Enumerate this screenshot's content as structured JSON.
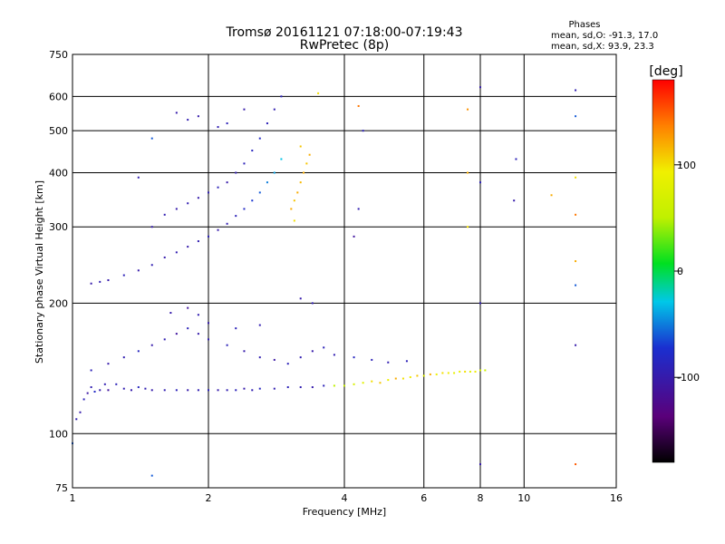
{
  "header": {
    "title": "Tromsø 20161121 07:18:00-07:19:43",
    "subtitle": "RwPretec (8p)",
    "phases_heading": "Phases",
    "phases_line1": "mean, sd,O: -91.3, 17.0",
    "phases_line2": "mean, sd,X:  93.9, 23.3"
  },
  "colorbar": {
    "label": "[deg]",
    "ticks": [
      {
        "value": 100,
        "label": "100"
      },
      {
        "value": 0,
        "label": "0"
      },
      {
        "value": -100,
        "label": "-100"
      }
    ],
    "range": [
      -180,
      180
    ]
  },
  "chart_data": {
    "type": "scatter",
    "title": "Tromsø 20161121 07:18:00-07:19:43",
    "subtitle": "RwPretec (8p)",
    "xlabel": "Frequency [MHz]",
    "ylabel": "Stationary phase Virtual Height [km]",
    "xscale": "log",
    "yscale": "log",
    "xlim": [
      1,
      16
    ],
    "ylim": [
      75,
      750
    ],
    "grid": true,
    "x_ticks": [
      1,
      2,
      4,
      6,
      8,
      10,
      16
    ],
    "x_tick_labels": [
      "1",
      "2",
      "4",
      "6",
      "8",
      "10",
      "16"
    ],
    "y_ticks": [
      75,
      100,
      200,
      300,
      400,
      500,
      600,
      750
    ],
    "y_tick_labels": [
      "75",
      "100",
      "200",
      "300",
      "400",
      "500",
      "600",
      "750"
    ],
    "color_scale": "phase [deg], -180 (black/purple) to 180 (red)",
    "points": [
      [
        1.02,
        108,
        -95
      ],
      [
        1.04,
        112,
        -100
      ],
      [
        1.06,
        120,
        -90
      ],
      [
        1.08,
        124,
        -105
      ],
      [
        1.1,
        128,
        -95
      ],
      [
        1.12,
        125,
        -80
      ],
      [
        1.15,
        126,
        -100
      ],
      [
        1.18,
        130,
        -95
      ],
      [
        1.2,
        126,
        -110
      ],
      [
        1.25,
        130,
        -90
      ],
      [
        1.3,
        127,
        -95
      ],
      [
        1.35,
        126,
        -100
      ],
      [
        1.4,
        128,
        -85
      ],
      [
        1.45,
        127,
        -95
      ],
      [
        1.5,
        126,
        -100
      ],
      [
        1.6,
        126,
        -95
      ],
      [
        1.7,
        126,
        -90
      ],
      [
        1.8,
        126,
        -100
      ],
      [
        1.9,
        126,
        -95
      ],
      [
        2.0,
        126,
        -90
      ],
      [
        2.1,
        126,
        -100
      ],
      [
        2.2,
        126,
        -95
      ],
      [
        2.3,
        126,
        -90
      ],
      [
        2.4,
        127,
        -100
      ],
      [
        2.5,
        126,
        -95
      ],
      [
        2.6,
        127,
        -85
      ],
      [
        2.8,
        127,
        -95
      ],
      [
        3.0,
        128,
        -90
      ],
      [
        3.2,
        128,
        -95
      ],
      [
        3.4,
        128,
        -100
      ],
      [
        3.6,
        129,
        -90
      ],
      [
        3.8,
        129,
        50
      ],
      [
        4.0,
        129,
        60
      ],
      [
        4.2,
        130,
        70
      ],
      [
        4.4,
        131,
        80
      ],
      [
        4.6,
        132,
        100
      ],
      [
        4.8,
        131,
        110
      ],
      [
        5.0,
        133,
        90
      ],
      [
        5.2,
        134,
        120
      ],
      [
        5.4,
        134,
        100
      ],
      [
        5.6,
        135,
        95
      ],
      [
        5.8,
        136,
        110
      ],
      [
        6.0,
        136,
        80
      ],
      [
        6.2,
        137,
        120
      ],
      [
        6.4,
        137,
        90
      ],
      [
        6.6,
        138,
        100
      ],
      [
        6.8,
        138,
        95
      ],
      [
        7.0,
        138,
        85
      ],
      [
        7.2,
        139,
        90
      ],
      [
        7.4,
        139,
        100
      ],
      [
        7.6,
        139,
        80
      ],
      [
        7.8,
        139,
        95
      ],
      [
        8.0,
        140,
        70
      ],
      [
        8.2,
        140,
        60
      ],
      [
        1.1,
        140,
        -90
      ],
      [
        1.2,
        145,
        -100
      ],
      [
        1.3,
        150,
        -95
      ],
      [
        1.4,
        155,
        -85
      ],
      [
        1.5,
        160,
        -100
      ],
      [
        1.6,
        165,
        -95
      ],
      [
        1.7,
        170,
        -110
      ],
      [
        1.8,
        175,
        -90
      ],
      [
        1.9,
        170,
        -100
      ],
      [
        2.0,
        165,
        -95
      ],
      [
        2.2,
        160,
        -90
      ],
      [
        2.4,
        155,
        -100
      ],
      [
        2.6,
        150,
        -95
      ],
      [
        2.8,
        148,
        -105
      ],
      [
        3.0,
        145,
        -90
      ],
      [
        3.2,
        150,
        -95
      ],
      [
        3.4,
        155,
        -100
      ],
      [
        3.6,
        158,
        -90
      ],
      [
        3.8,
        152,
        -95
      ],
      [
        4.2,
        150,
        -85
      ],
      [
        4.6,
        148,
        -90
      ],
      [
        5.0,
        146,
        -95
      ],
      [
        5.5,
        147,
        -90
      ],
      [
        1.65,
        190,
        -100
      ],
      [
        1.8,
        195,
        -110
      ],
      [
        1.9,
        188,
        -95
      ],
      [
        2.0,
        180,
        -100
      ],
      [
        2.3,
        175,
        -90
      ],
      [
        2.6,
        178,
        -95
      ],
      [
        3.2,
        205,
        -100
      ],
      [
        3.4,
        200,
        -95
      ],
      [
        1.1,
        222,
        -100
      ],
      [
        1.15,
        224,
        -95
      ],
      [
        1.2,
        226,
        -100
      ],
      [
        1.3,
        232,
        -90
      ],
      [
        1.4,
        238,
        -100
      ],
      [
        1.5,
        245,
        -95
      ],
      [
        1.6,
        255,
        -100
      ],
      [
        1.7,
        262,
        -95
      ],
      [
        1.8,
        270,
        -100
      ],
      [
        1.9,
        278,
        -95
      ],
      [
        2.0,
        285,
        -90
      ],
      [
        2.1,
        295,
        -100
      ],
      [
        2.2,
        305,
        -95
      ],
      [
        2.3,
        318,
        -90
      ],
      [
        2.4,
        330,
        -80
      ],
      [
        2.5,
        345,
        -70
      ],
      [
        2.6,
        360,
        -60
      ],
      [
        2.7,
        380,
        -50
      ],
      [
        2.8,
        400,
        -40
      ],
      [
        2.9,
        430,
        -30
      ],
      [
        1.5,
        300,
        -100
      ],
      [
        1.6,
        320,
        -95
      ],
      [
        1.7,
        330,
        -100
      ],
      [
        1.8,
        340,
        -95
      ],
      [
        1.9,
        350,
        -100
      ],
      [
        2.0,
        360,
        -95
      ],
      [
        2.1,
        370,
        -90
      ],
      [
        2.2,
        380,
        -100
      ],
      [
        2.3,
        400,
        -95
      ],
      [
        2.4,
        420,
        -90
      ],
      [
        2.5,
        450,
        -85
      ],
      [
        2.6,
        480,
        -80
      ],
      [
        2.7,
        520,
        -90
      ],
      [
        2.8,
        560,
        -95
      ],
      [
        2.9,
        600,
        -90
      ],
      [
        1.7,
        550,
        -100
      ],
      [
        1.8,
        530,
        -95
      ],
      [
        1.9,
        540,
        -100
      ],
      [
        2.1,
        510,
        -95
      ],
      [
        2.2,
        520,
        -90
      ],
      [
        2.4,
        560,
        -100
      ],
      [
        3.05,
        330,
        120
      ],
      [
        3.1,
        345,
        110
      ],
      [
        3.15,
        360,
        120
      ],
      [
        3.2,
        380,
        115
      ],
      [
        3.25,
        400,
        120
      ],
      [
        3.3,
        420,
        110
      ],
      [
        3.35,
        440,
        120
      ],
      [
        3.2,
        460,
        110
      ],
      [
        3.1,
        310,
        100
      ],
      [
        4.2,
        285,
        -110
      ],
      [
        4.3,
        330,
        -95
      ],
      [
        4.4,
        500,
        -90
      ],
      [
        4.3,
        570,
        140
      ],
      [
        3.5,
        610,
        100
      ],
      [
        7.5,
        560,
        130
      ],
      [
        7.5,
        400,
        120
      ],
      [
        7.5,
        300,
        100
      ],
      [
        8.0,
        630,
        -100
      ],
      [
        8.0,
        380,
        -90
      ],
      [
        8.0,
        200,
        -95
      ],
      [
        8.0,
        85,
        -100
      ],
      [
        9.5,
        345,
        -100
      ],
      [
        9.6,
        430,
        -90
      ],
      [
        13.0,
        620,
        -95
      ],
      [
        13.0,
        540,
        -60
      ],
      [
        13.0,
        390,
        100
      ],
      [
        13.0,
        320,
        140
      ],
      [
        13.0,
        250,
        120
      ],
      [
        13.0,
        220,
        -60
      ],
      [
        13.0,
        160,
        -100
      ],
      [
        13.0,
        85,
        150
      ],
      [
        11.5,
        355,
        120
      ],
      [
        1.5,
        80,
        -60
      ],
      [
        1.5,
        480,
        -60
      ],
      [
        1.4,
        390,
        -95
      ],
      [
        1.0,
        95,
        -60
      ]
    ]
  }
}
